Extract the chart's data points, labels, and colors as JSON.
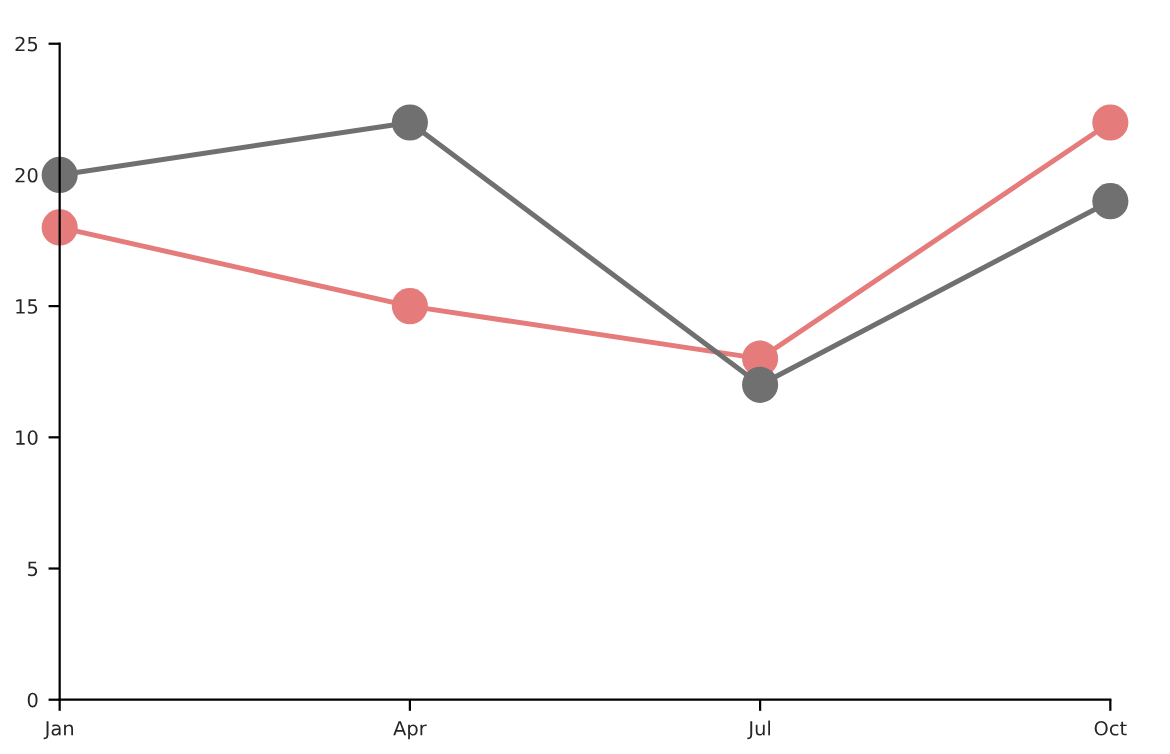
{
  "chart_data": {
    "type": "line",
    "categories": [
      "Jan",
      "Apr",
      "Jul",
      "Oct"
    ],
    "series": [
      {
        "color": "#e57b7b",
        "values": [
          18,
          15,
          13,
          22
        ]
      },
      {
        "color": "#707070",
        "values": [
          20,
          22,
          12,
          19
        ]
      }
    ],
    "ylim": [
      0,
      25
    ],
    "yticks": [
      0,
      5,
      10,
      15,
      20,
      25
    ],
    "grid": false,
    "legend": false,
    "marker": "circle",
    "line_style": "solid"
  }
}
